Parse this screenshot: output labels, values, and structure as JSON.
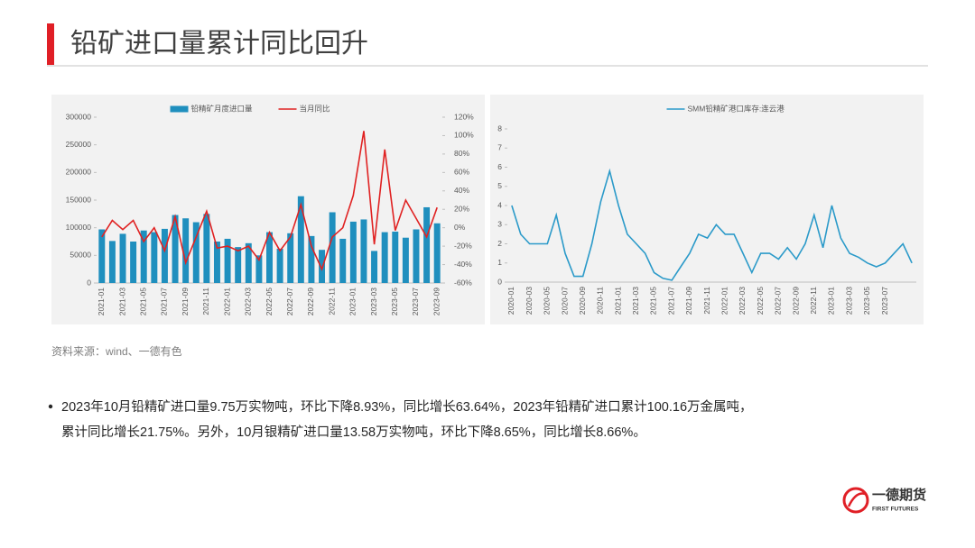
{
  "page": {
    "title": "铅矿进口量累计同比回升",
    "source": "资料来源：wind、一德有色",
    "bullet": [
      "2023年10月铅精矿进口量9.75万实物吨，环比下降8.93%，同比增长63.64%，2023年铅精矿进口累计100.16万金属吨，",
      "累计同比增长21.75%。另外，10月银精矿进口量13.58万实物吨，环比下降8.65%，同比增长8.66%。"
    ],
    "logo": {
      "name": "一德期货",
      "english": "FIRST FUTURES"
    }
  },
  "chart_data": [
    {
      "type": "combo",
      "categories": [
        "2021-01",
        null,
        "2021-03",
        null,
        "2021-05",
        null,
        "2021-07",
        null,
        "2021-09",
        null,
        "2021-11",
        null,
        "2022-01",
        null,
        "2022-03",
        null,
        "2022-05",
        null,
        "2022-07",
        null,
        "2022-09",
        null,
        "2022-11",
        null,
        "2023-01",
        null,
        "2023-03",
        null,
        "2023-05",
        null,
        "2023-07",
        null,
        "2023-09"
      ],
      "series": [
        {
          "name": "铅精矿月度进口量",
          "type": "bar",
          "color": "#1f8fbe",
          "values": [
            97000,
            76000,
            89000,
            75000,
            95000,
            92000,
            98000,
            123000,
            117000,
            110000,
            125000,
            75000,
            80000,
            65000,
            72000,
            50000,
            92000,
            62000,
            90000,
            157000,
            85000,
            60000,
            128000,
            80000,
            111000,
            115000,
            58000,
            92000,
            93000,
            82000,
            97000,
            137000,
            108000
          ]
        },
        {
          "name": "当月同比",
          "type": "line",
          "color": "#e02222",
          "axis": "y2",
          "values": [
            -10,
            8,
            -2,
            8,
            -15,
            0,
            -25,
            12,
            -38,
            -10,
            18,
            -22,
            -20,
            -25,
            -20,
            -35,
            -5,
            -25,
            -10,
            25,
            -20,
            -45,
            -10,
            0,
            35,
            105,
            -18,
            85,
            -3,
            30,
            10,
            -10,
            22
          ]
        }
      ],
      "ylim": [
        0,
        300000
      ],
      "yticks": [
        0,
        50000,
        100000,
        150000,
        200000,
        250000,
        300000
      ],
      "y2lim": [
        -60,
        120
      ],
      "y2ticks": [
        {
          "value": -60,
          "label": "-60%"
        },
        {
          "value": -40,
          "label": "-40%"
        },
        {
          "value": -20,
          "label": "-20%"
        },
        {
          "value": 0,
          "label": "0%"
        },
        {
          "value": 20,
          "label": "20%"
        },
        {
          "value": 40,
          "label": "40%"
        },
        {
          "value": 60,
          "label": "60%"
        },
        {
          "value": 80,
          "label": "80%"
        },
        {
          "value": 100,
          "label": "100%"
        },
        {
          "value": 120,
          "label": "120%"
        }
      ]
    },
    {
      "type": "line",
      "categories": [
        "2020-01",
        null,
        "2020-03",
        null,
        "2020-05",
        null,
        "2020-07",
        null,
        "2020-09",
        null,
        "2020-11",
        null,
        "2021-01",
        null,
        "2021-03",
        null,
        "2021-05",
        null,
        "2021-07",
        null,
        "2021-09",
        null,
        "2021-11",
        null,
        "2022-01",
        null,
        "2022-03",
        null,
        "2022-05",
        null,
        "2022-07",
        null,
        "2022-09",
        null,
        "2022-11",
        null,
        "2023-01",
        null,
        "2023-03",
        null,
        "2023-05",
        null,
        "2023-07",
        null,
        null,
        null
      ],
      "series": [
        {
          "name": "SMM铅精矿港口库存:连云港",
          "color": "#2b9ac9",
          "values": [
            4,
            2.5,
            2,
            2,
            2,
            3.5,
            1.5,
            0.3,
            0.3,
            2,
            4.2,
            5.8,
            4,
            2.5,
            2,
            1.5,
            0.5,
            0.2,
            0.1,
            0.8,
            1.5,
            2.5,
            2.3,
            3,
            2.5,
            2.5,
            1.5,
            0.5,
            1.5,
            1.5,
            1.2,
            1.8,
            1.2,
            2,
            3.5,
            1.8,
            4,
            2.3,
            1.5,
            1.3,
            1,
            0.8,
            1,
            1.5,
            2,
            1
          ]
        }
      ],
      "ylim": [
        0,
        8
      ],
      "yticks": [
        0,
        1,
        2,
        3,
        4,
        5,
        6,
        7,
        8
      ]
    }
  ]
}
